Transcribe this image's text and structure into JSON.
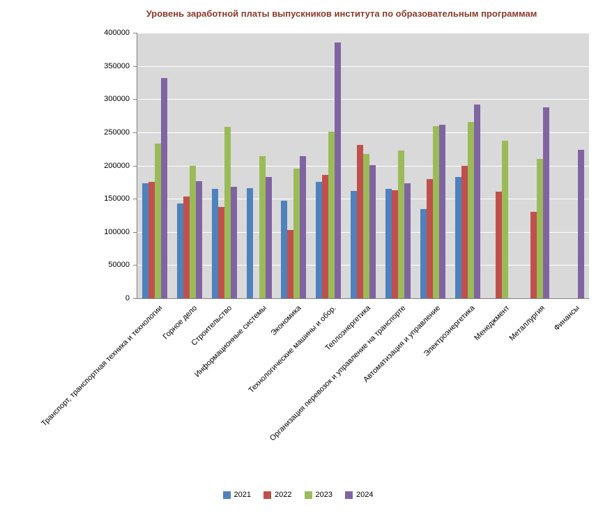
{
  "chart_data": {
    "type": "bar",
    "title": "Уровень заработной платы выпускников института по образовательным программам",
    "categories": [
      "Транспорт,  транспортная техника и технологии",
      "Горное дело",
      "Строительство",
      "Информационные  системы",
      "Экономика",
      "Технологические машины и обор.",
      "Теплоэнергетика",
      "Организация перевозок и управление на транспорте",
      "Автоматизация  и управление",
      "Электроэнергетика",
      "Менеджмент",
      "Металлургия",
      "Финансы"
    ],
    "series": [
      {
        "name": "2021",
        "color": "#4F81BD",
        "values": [
          173000,
          143000,
          165000,
          166000,
          147000,
          175000,
          162000,
          165000,
          134000,
          183000,
          null,
          null,
          null
        ]
      },
      {
        "name": "2022",
        "color": "#C0504D",
        "values": [
          175000,
          153000,
          138000,
          null,
          103000,
          186000,
          231000,
          163000,
          180000,
          200000,
          161000,
          130000,
          null
        ]
      },
      {
        "name": "2023",
        "color": "#9BBB59",
        "values": [
          233000,
          200000,
          258000,
          214000,
          195000,
          251000,
          217000,
          223000,
          259000,
          266000,
          237000,
          210000,
          null
        ]
      },
      {
        "name": "2024",
        "color": "#8064A2",
        "values": [
          332000,
          176000,
          168000,
          183000,
          214000,
          385000,
          201000,
          173000,
          261000,
          292000,
          null,
          288000,
          224000
        ]
      }
    ],
    "ylim": [
      0,
      400000
    ],
    "y_tick_step": 50000,
    "grid": true,
    "legend_position": "bottom"
  },
  "colors": {
    "title": "#8B3A2B",
    "plot_bg": "#D9D9D9",
    "gridline": "#FFFFFF",
    "axis": "#808080",
    "text": "#000000"
  }
}
